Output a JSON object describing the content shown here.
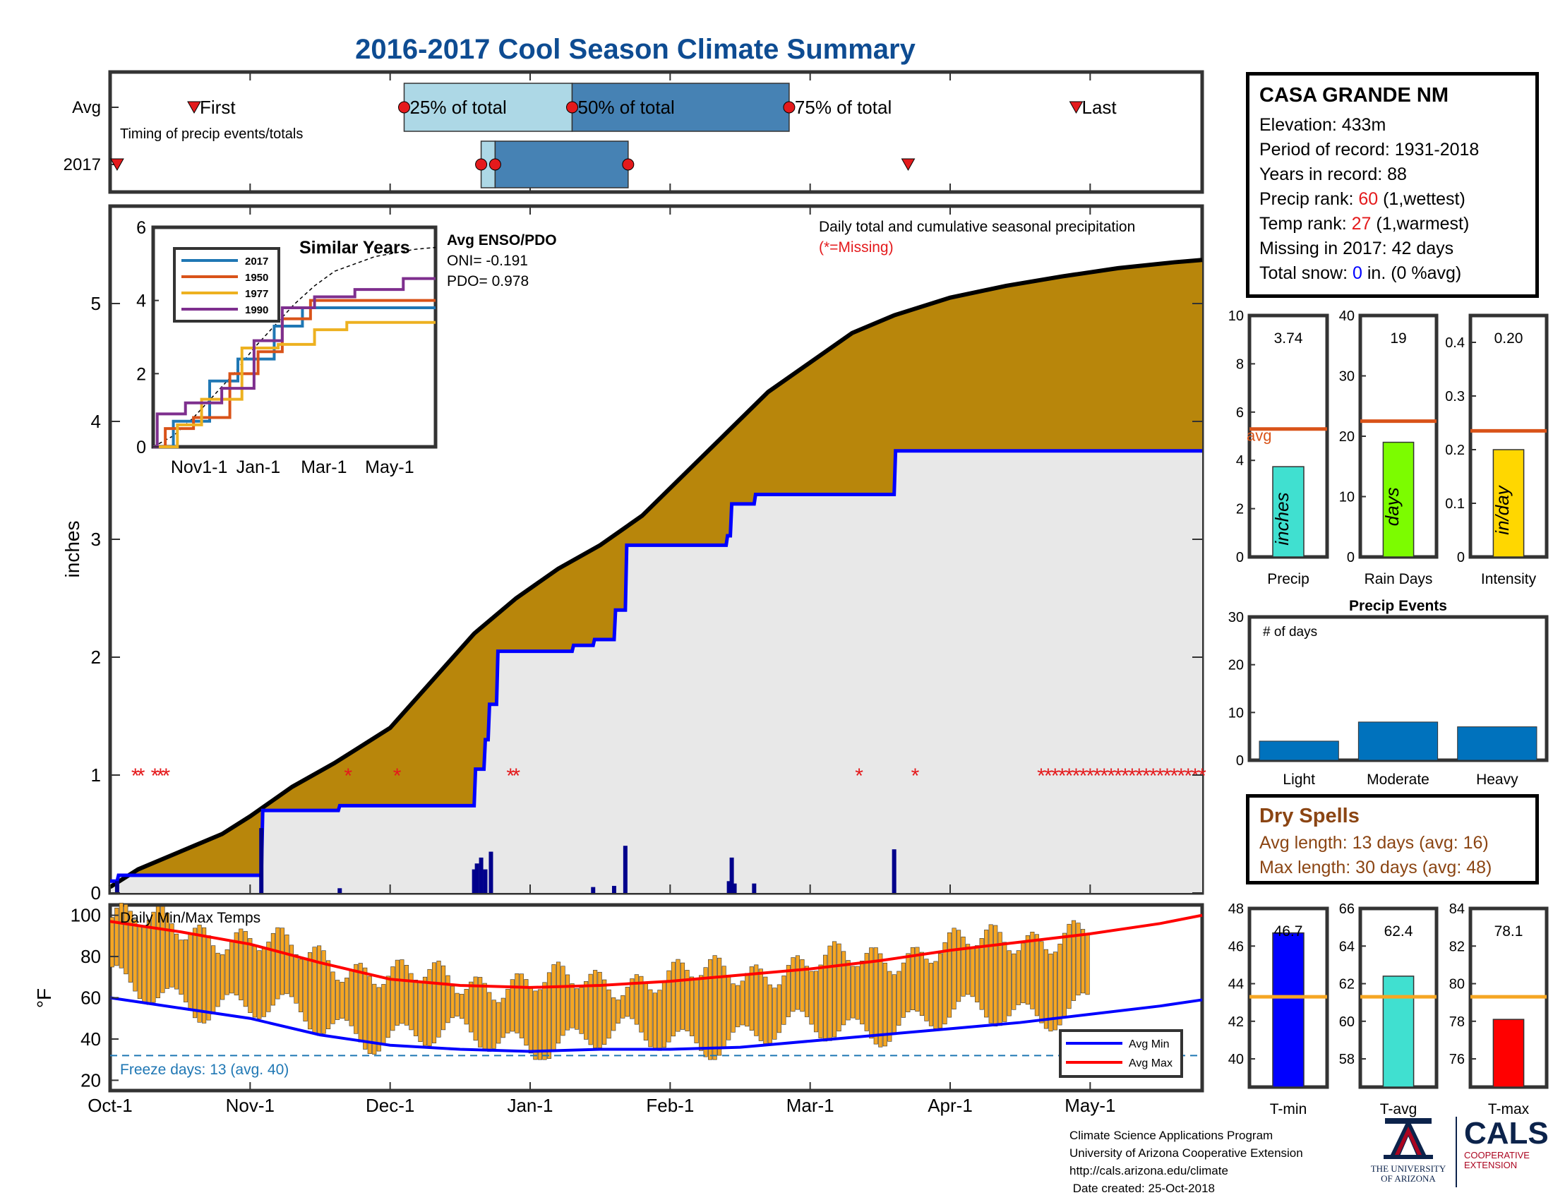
{
  "title": "2016-2017 Cool Season Climate Summary",
  "station": {
    "name": "CASA GRANDE NM",
    "elevation_label": "Elevation: 433m",
    "period_label": "Period of record: 1931-2018",
    "years_label": "Years in record: 88",
    "precip_rank_prefix": "Precip rank: ",
    "precip_rank_value": "60",
    "precip_rank_suffix": " (1,wettest)",
    "temp_rank_prefix": "Temp rank: ",
    "temp_rank_value": "27",
    "temp_rank_suffix": " (1,warmest)",
    "missing_label": "Missing in 2017: 42 days",
    "snow_prefix": "Total snow: ",
    "snow_value": "0",
    "snow_suffix": " in. (0 %avg)"
  },
  "dry_spells": {
    "title": "Dry Spells",
    "avg_label": "Avg length: 13 days (avg: 16)",
    "max_label": "Max length: 30 days (avg: 48)"
  },
  "footer": {
    "line1": "Climate Science Applications Program",
    "line2": "University of Arizona Cooperative Extension",
    "line3": "http://cals.arizona.edu/climate",
    "line4": " Date created: 25-Oct-2018"
  },
  "logos": {
    "ua_line1": "THE UNIVERSITY",
    "ua_line2": "OF ARIZONA",
    "cals_big": "CALS",
    "cals_line1": "COOPERATIVE",
    "cals_line2": "EXTENSION"
  },
  "colors": {
    "title_blue": "#0e4c92",
    "cum_fill": "#b8860b",
    "obs_fill": "#e8e8e8",
    "obs_line": "#0000ff",
    "missing_marker": "#e41a1c",
    "temp_bar": "#f5a623",
    "avg_min": "#0000ff",
    "avg_max": "#ff0000",
    "freeze_line": "#1f77b4"
  },
  "chart_data": [
    {
      "type": "timeline",
      "id": "timing",
      "subtitle": "Timing of precip events/totals",
      "row_labels": [
        "Avg",
        "2017"
      ],
      "avg": {
        "first": 0.6,
        "q25": 2.1,
        "q50": 3.3,
        "q75": 4.85,
        "last": 6.9,
        "labels": {
          "first": "First",
          "q25": "25% of total",
          "q50": "50% of total",
          "q75": "75% of total",
          "last": "Last"
        }
      },
      "y2017": {
        "first": 0.05,
        "q25": 2.65,
        "q50": 2.75,
        "q75": 3.7,
        "last": 5.7
      },
      "xlim": [
        0,
        7.8
      ]
    },
    {
      "type": "area",
      "id": "cumulative_precip",
      "ylabel": "inches",
      "annotation": "Daily total and cumulative seasonal precipitation",
      "missing_note": "(*=Missing)",
      "xlim": [
        0,
        7.8
      ],
      "ylim": [
        0,
        6
      ],
      "yticks": [
        0,
        1,
        2,
        3,
        4,
        5
      ],
      "avg_cumulative": {
        "x": [
          0,
          0.2,
          0.4,
          0.6,
          0.8,
          1.0,
          1.3,
          1.6,
          2.0,
          2.3,
          2.6,
          2.9,
          3.2,
          3.5,
          3.8,
          4.1,
          4.4,
          4.7,
          5.0,
          5.3,
          5.6,
          6.0,
          6.4,
          6.8,
          7.2,
          7.6,
          7.8
        ],
        "y": [
          0.05,
          0.2,
          0.3,
          0.4,
          0.5,
          0.65,
          0.9,
          1.1,
          1.4,
          1.8,
          2.2,
          2.5,
          2.75,
          2.95,
          3.2,
          3.55,
          3.9,
          4.25,
          4.5,
          4.75,
          4.9,
          5.05,
          5.15,
          5.23,
          5.3,
          5.35,
          5.37
        ]
      },
      "obs_cumulative": {
        "x": [
          0,
          0.05,
          0.06,
          0.35,
          0.36,
          1.08,
          1.09,
          1.63,
          1.64,
          2.6,
          2.61,
          2.67,
          2.68,
          2.7,
          2.71,
          2.76,
          2.77,
          3.3,
          3.31,
          3.45,
          3.46,
          3.6,
          3.61,
          3.68,
          3.69,
          4.4,
          4.41,
          4.43,
          4.44,
          4.6,
          4.61,
          4.75,
          4.76,
          5.6,
          5.61,
          7.8
        ],
        "y": [
          0.1,
          0.1,
          0.15,
          0.15,
          0.15,
          0.15,
          0.7,
          0.7,
          0.74,
          0.74,
          1.05,
          1.05,
          1.3,
          1.3,
          1.6,
          1.6,
          2.05,
          2.05,
          2.1,
          2.1,
          2.15,
          2.15,
          2.4,
          2.4,
          2.95,
          2.95,
          3.03,
          3.03,
          3.3,
          3.3,
          3.38,
          3.38,
          3.38,
          3.38,
          3.75,
          3.75
        ]
      },
      "daily_bars": {
        "x": [
          0.05,
          1.08,
          1.64,
          2.6,
          2.62,
          2.65,
          2.68,
          2.72,
          3.45,
          3.6,
          3.68,
          4.42,
          4.44,
          4.46,
          4.6,
          5.6
        ],
        "y": [
          0.1,
          0.55,
          0.04,
          0.2,
          0.25,
          0.3,
          0.2,
          0.35,
          0.05,
          0.06,
          0.4,
          0.1,
          0.3,
          0.08,
          0.08,
          0.37
        ]
      },
      "missing_days_x": [
        0.18,
        0.22,
        0.32,
        0.36,
        0.4,
        1.7,
        2.05,
        2.86,
        2.9,
        5.35,
        5.75,
        6.65,
        6.7,
        6.75,
        6.8,
        6.85,
        6.9,
        6.95,
        7.0,
        7.05,
        7.1,
        7.15,
        7.2,
        7.25,
        7.3,
        7.35,
        7.4,
        7.45,
        7.5,
        7.55,
        7.6,
        7.65,
        7.7,
        7.75,
        7.8
      ],
      "missing_y": 1,
      "inset": {
        "title": "Similar Years",
        "enso_title": "Avg ENSO/PDO",
        "oni_label": "ONI= -0.191",
        "pdo_label": "PDO= 0.978",
        "xticks": [
          "Nov1-1",
          "Jan-1",
          "Mar-1",
          "May-1"
        ],
        "yticks": [
          0,
          2,
          4,
          6
        ],
        "ylim": [
          0,
          6
        ],
        "series": [
          {
            "name": "2017",
            "color": "#1f77b4",
            "x": [
              0,
              0.5,
              0.5,
              1.4,
              1.4,
              2.1,
              2.1,
              3.0,
              3.0,
              3.7,
              3.7,
              4.4,
              4.4,
              5.4,
              5.4,
              7.0
            ],
            "y": [
              0,
              0,
              0.7,
              0.7,
              1.8,
              1.8,
              2.4,
              2.4,
              3.3,
              3.3,
              3.8,
              3.8,
              3.8,
              3.8,
              3.8,
              3.8
            ]
          },
          {
            "name": "1950",
            "color": "#d95319",
            "x": [
              0,
              0.3,
              0.3,
              1.0,
              1.0,
              1.9,
              1.9,
              2.6,
              2.6,
              3.2,
              3.2,
              3.9,
              3.9,
              4.9,
              4.9,
              7.0
            ],
            "y": [
              0,
              0,
              0.5,
              0.5,
              0.8,
              0.8,
              2.0,
              2.0,
              2.6,
              2.6,
              3.5,
              3.5,
              4.0,
              4.0,
              4.0,
              4.0
            ]
          },
          {
            "name": "1977",
            "color": "#edb120",
            "x": [
              0,
              0.6,
              0.6,
              1.2,
              1.2,
              2.2,
              2.2,
              3.1,
              3.1,
              4.0,
              4.0,
              4.8,
              4.8,
              7.0
            ],
            "y": [
              0,
              0,
              0.6,
              0.6,
              1.3,
              1.3,
              2.7,
              2.7,
              2.8,
              2.8,
              3.2,
              3.2,
              3.4,
              3.4
            ]
          },
          {
            "name": "1990",
            "color": "#7e2f8e",
            "x": [
              0,
              0.1,
              0.1,
              0.8,
              0.8,
              1.7,
              1.7,
              2.5,
              2.5,
              3.2,
              3.2,
              4.0,
              4.0,
              5.0,
              5.0,
              6.2,
              6.2,
              7.0
            ],
            "y": [
              0,
              0,
              0.9,
              0.9,
              1.2,
              1.2,
              1.6,
              1.6,
              2.9,
              2.9,
              3.8,
              3.8,
              4.1,
              4.1,
              4.3,
              4.3,
              4.6,
              4.6
            ]
          }
        ],
        "avg_x": [
          0,
          0.5,
          1.0,
          1.5,
          2.0,
          2.5,
          3.0,
          3.5,
          4.0,
          4.5,
          5.0,
          5.5,
          6.0,
          6.5,
          7.0
        ],
        "avg_y": [
          0,
          0.3,
          0.8,
          1.4,
          2.0,
          2.7,
          3.3,
          3.9,
          4.4,
          4.8,
          5.0,
          5.2,
          5.3,
          5.4,
          5.45
        ]
      }
    },
    {
      "type": "bar",
      "id": "temps",
      "ylabel": "°F",
      "subtitle": "Daily Min/Max Temps",
      "freeze_label": "Freeze days: 13 (avg. 40)",
      "freeze_line": 32,
      "ylim": [
        15,
        105
      ],
      "yticks": [
        20,
        40,
        60,
        80,
        100
      ],
      "xlim": [
        0,
        7.8
      ],
      "xticks": [
        "Oct-1",
        "Nov-1",
        "Dec-1",
        "Jan-1",
        "Feb-1",
        "Mar-1",
        "Apr-1",
        "May-1"
      ],
      "legend": [
        "Avg Min",
        "Avg Max"
      ],
      "avg_min": {
        "x": [
          0,
          0.5,
          1.0,
          1.5,
          2.0,
          2.5,
          3.0,
          3.5,
          4.0,
          4.5,
          5.0,
          5.5,
          6.0,
          6.5,
          7.0,
          7.5,
          7.8
        ],
        "y": [
          60,
          55,
          50,
          42,
          37,
          35,
          34,
          35,
          35,
          36,
          39,
          42,
          45,
          48,
          52,
          56,
          59
        ]
      },
      "avg_max": {
        "x": [
          0,
          0.5,
          1.0,
          1.5,
          2.0,
          2.5,
          3.0,
          3.5,
          4.0,
          4.5,
          5.0,
          5.5,
          6.0,
          6.5,
          7.0,
          7.5,
          7.8
        ],
        "y": [
          97,
          92,
          86,
          77,
          69,
          66,
          65,
          66,
          68,
          71,
          74,
          78,
          83,
          87,
          91,
          96,
          100
        ]
      }
    },
    {
      "type": "bar",
      "id": "precip_total",
      "label": "Precip",
      "bar_label": "inches",
      "value": 3.74,
      "value_label": "3.74",
      "avg": 5.3,
      "avg_label": "avg",
      "ylim": [
        0,
        10
      ],
      "yticks": [
        0,
        2,
        4,
        6,
        8,
        10
      ],
      "color": "#40e0d0"
    },
    {
      "type": "bar",
      "id": "rain_days",
      "label": "Rain Days",
      "bar_label": "days",
      "value": 19,
      "value_label": "19",
      "avg": 22.5,
      "ylim": [
        0,
        40
      ],
      "yticks": [
        0,
        10,
        20,
        30,
        40
      ],
      "color": "#7cfc00"
    },
    {
      "type": "bar",
      "id": "intensity",
      "label": "Intensity",
      "bar_label": "in/day",
      "value": 0.2,
      "value_label": "0.20",
      "avg": 0.235,
      "ylim": [
        0,
        0.45
      ],
      "yticks": [
        0,
        0.1,
        0.2,
        0.3,
        0.4
      ],
      "color": "#ffd700"
    },
    {
      "type": "bar",
      "id": "precip_events",
      "title": "Precip Events",
      "annotation": "# of days",
      "categories": [
        "Light",
        "Moderate",
        "Heavy"
      ],
      "values": [
        4,
        8,
        7
      ],
      "ylim": [
        0,
        30
      ],
      "yticks": [
        0,
        10,
        20,
        30
      ],
      "color": "#0072bd"
    },
    {
      "type": "bar",
      "id": "tmin",
      "label": "T-min",
      "value": 46.7,
      "value_label": "46.7",
      "avg": 43.3,
      "ylim": [
        38.5,
        48
      ],
      "yticks": [
        40,
        42,
        44,
        46,
        48
      ],
      "color": "#0000ff"
    },
    {
      "type": "bar",
      "id": "tavg",
      "label": "T-avg",
      "value": 62.4,
      "value_label": "62.4",
      "avg": 61.3,
      "ylim": [
        56.5,
        66
      ],
      "yticks": [
        58,
        60,
        62,
        64,
        66
      ],
      "color": "#40e0d0"
    },
    {
      "type": "bar",
      "id": "tmax",
      "label": "T-max",
      "value": 78.1,
      "value_label": "78.1",
      "avg": 79.3,
      "ylim": [
        74.5,
        84
      ],
      "yticks": [
        76,
        78,
        80,
        82,
        84
      ],
      "color": "#ff0000"
    }
  ]
}
